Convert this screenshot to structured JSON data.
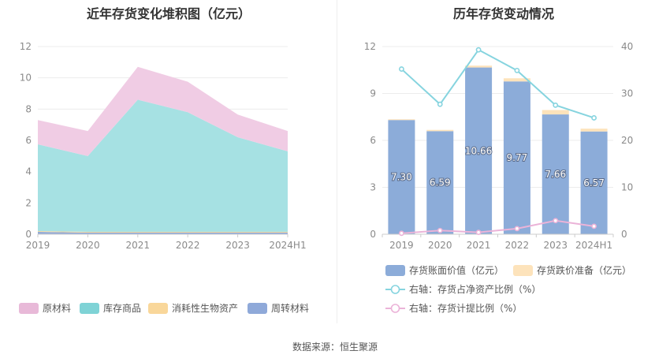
{
  "source": "数据来源：恒生聚源",
  "chart_data": [
    {
      "type": "area",
      "title": "近年存货变化堆积图（亿元）",
      "categories": [
        "2019",
        "2020",
        "2021",
        "2022",
        "2023",
        "2024H1"
      ],
      "ylim": [
        0,
        12
      ],
      "yticks": [
        "0",
        "2",
        "4",
        "6",
        "8",
        "10",
        "12"
      ],
      "stacked": true,
      "series": [
        {
          "name": "周转材料",
          "color": "#8fa9d9",
          "values": [
            0.15,
            0.1,
            0.1,
            0.1,
            0.1,
            0.1
          ]
        },
        {
          "name": "消耗性生物资产",
          "color": "#f7d9a0",
          "values": [
            0.05,
            0.05,
            0.05,
            0.05,
            0.05,
            0.05
          ]
        },
        {
          "name": "库存商品",
          "color": "#a6e1e3",
          "values": [
            5.55,
            4.85,
            8.45,
            7.65,
            6.05,
            5.15
          ]
        },
        {
          "name": "原材料",
          "color": "#f0cce4",
          "values": [
            1.55,
            1.6,
            2.1,
            1.95,
            1.45,
            1.3
          ]
        }
      ],
      "legend": [
        "原材料",
        "库存商品",
        "消耗性生物资产",
        "周转材料"
      ],
      "legend_colors": [
        "#e8b9d8",
        "#7fd3d6",
        "#f9d79a",
        "#8fa9d9"
      ]
    },
    {
      "type": "bar+line",
      "title": "历年存货变动情况",
      "categories": [
        "2019",
        "2020",
        "2021",
        "2022",
        "2023",
        "2024H1"
      ],
      "ylim_left": [
        0,
        12
      ],
      "yticks_left": [
        "0",
        "3",
        "6",
        "9",
        "12"
      ],
      "ylim_right": [
        0,
        40
      ],
      "yticks_right": [
        "0",
        "10",
        "20",
        "30",
        "40"
      ],
      "bars": [
        {
          "name": "存货账面价值（亿元）",
          "color": "#8cacd9",
          "values": [
            7.3,
            6.59,
            10.66,
            9.77,
            7.66,
            6.57
          ],
          "labels": [
            "7.30",
            "6.59",
            "10.66",
            "9.77",
            "7.66",
            "6.57"
          ]
        },
        {
          "name": "存货跌价准备（亿元）",
          "color": "#fde3bb",
          "values": [
            0.05,
            0.08,
            0.12,
            0.2,
            0.28,
            0.18
          ]
        }
      ],
      "lines": [
        {
          "name": "右轴：存货占净资产比例（%）",
          "color": "#86d4df",
          "values": [
            35.2,
            27.7,
            39.3,
            34.9,
            27.5,
            24.8
          ]
        },
        {
          "name": "右轴：存货计提比例（%）",
          "color": "#ebb3d8",
          "values": [
            0.2,
            0.8,
            0.4,
            1.2,
            2.9,
            1.7
          ]
        }
      ]
    }
  ]
}
